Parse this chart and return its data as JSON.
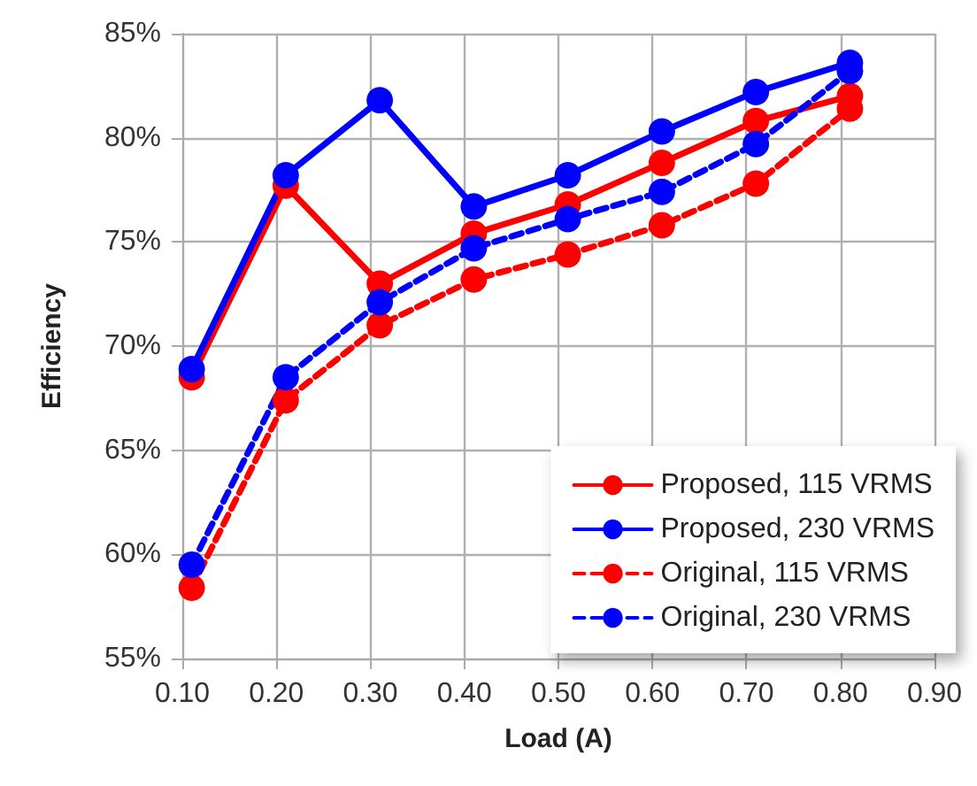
{
  "chart_data": {
    "type": "line",
    "xlabel": "Load (A)",
    "ylabel": "Efficiency",
    "xlim": [
      0.1,
      0.9
    ],
    "xticks": [
      {
        "value": 0.1,
        "label": "0.10"
      },
      {
        "value": 0.2,
        "label": "0.20"
      },
      {
        "value": 0.3,
        "label": "0.30"
      },
      {
        "value": 0.4,
        "label": "0.40"
      },
      {
        "value": 0.5,
        "label": "0.50"
      },
      {
        "value": 0.6,
        "label": "0.60"
      },
      {
        "value": 0.7,
        "label": "0.70"
      },
      {
        "value": 0.8,
        "label": "0.80"
      },
      {
        "value": 0.9,
        "label": "0.90"
      }
    ],
    "ylim": [
      55,
      85
    ],
    "yticks": [
      {
        "value": 55,
        "label": "55%"
      },
      {
        "value": 60,
        "label": "60%"
      },
      {
        "value": 65,
        "label": "65%"
      },
      {
        "value": 70,
        "label": "70%"
      },
      {
        "value": 75,
        "label": "75%"
      },
      {
        "value": 80,
        "label": "80%"
      },
      {
        "value": 85,
        "label": "85%"
      }
    ],
    "x": [
      0.11,
      0.21,
      0.31,
      0.41,
      0.51,
      0.61,
      0.71,
      0.81
    ],
    "series": [
      {
        "name": "Proposed, 115 VRMS",
        "color": "#ff0000",
        "line_style": "solid",
        "values": [
          68.5,
          77.7,
          73.0,
          75.4,
          76.8,
          78.8,
          80.8,
          82.0
        ]
      },
      {
        "name": "Proposed, 230 VRMS",
        "color": "#0000ff",
        "line_style": "solid",
        "values": [
          68.9,
          78.2,
          81.8,
          76.7,
          78.2,
          80.3,
          82.2,
          83.6
        ]
      },
      {
        "name": "Original, 115 VRMS",
        "color": "#ff0000",
        "line_style": "dashed",
        "values": [
          58.4,
          67.4,
          71.0,
          73.2,
          74.4,
          75.8,
          77.8,
          81.4
        ]
      },
      {
        "name": "Original, 230 VRMS",
        "color": "#0000ff",
        "line_style": "dashed",
        "values": [
          59.5,
          68.5,
          72.1,
          74.7,
          76.1,
          77.4,
          79.7,
          83.2
        ]
      }
    ],
    "marker": "circle",
    "grid": true,
    "legend": "bottom right"
  }
}
